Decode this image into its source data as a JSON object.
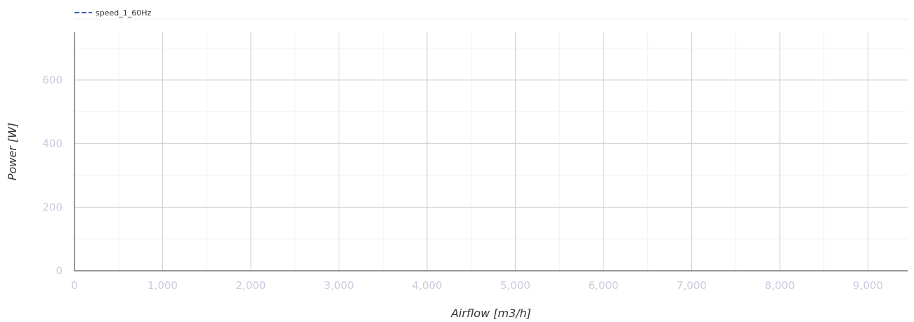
{
  "chart_data": {
    "type": "line",
    "title": "",
    "xlabel": "Airflow [m3/h]",
    "ylabel": "Power [W]",
    "xlim": [
      0,
      9450
    ],
    "ylim": [
      0,
      750
    ],
    "x_ticks": [
      0,
      1000,
      2000,
      3000,
      4000,
      5000,
      6000,
      7000,
      8000,
      9000
    ],
    "x_tick_labels": [
      "0",
      "1,000",
      "2,000",
      "3,000",
      "4,000",
      "5,000",
      "6,000",
      "7,000",
      "8,000",
      "9,000"
    ],
    "x_minor_ticks": [
      500,
      1500,
      2500,
      3500,
      4500,
      5500,
      6500,
      7500,
      8500
    ],
    "y_ticks": [
      0,
      200,
      400,
      600
    ],
    "y_tick_labels": [
      "0",
      "200",
      "400",
      "600"
    ],
    "y_minor_ticks": [
      100,
      300,
      500,
      700
    ],
    "grid": true,
    "legend_position": "top-left",
    "series": [
      {
        "name": "speed_1_60Hz",
        "color": "#3b5fb5",
        "line_style": "dashed",
        "x": [],
        "y": []
      }
    ]
  }
}
